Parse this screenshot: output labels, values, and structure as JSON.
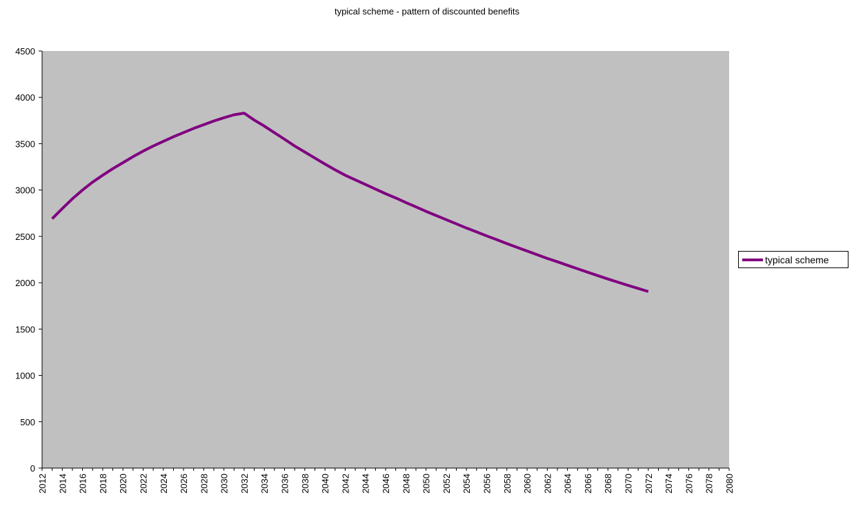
{
  "chart_data": {
    "type": "line",
    "title": "typical scheme - pattern of discounted benefits",
    "xlabel": "",
    "ylabel": "",
    "xlim": [
      2012,
      2080
    ],
    "ylim": [
      0,
      4500
    ],
    "y_ticks": [
      0,
      500,
      1000,
      1500,
      2000,
      2500,
      3000,
      3500,
      4000,
      4500
    ],
    "x_ticks": [
      2012,
      2014,
      2016,
      2018,
      2020,
      2022,
      2024,
      2026,
      2028,
      2030,
      2032,
      2034,
      2036,
      2038,
      2040,
      2042,
      2044,
      2046,
      2048,
      2050,
      2052,
      2054,
      2056,
      2058,
      2060,
      2062,
      2064,
      2066,
      2068,
      2070,
      2072,
      2074,
      2076,
      2078,
      2080
    ],
    "grid": false,
    "legend_position": "right",
    "background_color": "#c0c0c0",
    "series": [
      {
        "name": "typical scheme",
        "color": "#800080",
        "x": [
          2013,
          2014,
          2015,
          2016,
          2017,
          2018,
          2019,
          2020,
          2021,
          2022,
          2023,
          2024,
          2025,
          2026,
          2027,
          2028,
          2029,
          2030,
          2031,
          2032,
          2033,
          2034,
          2035,
          2036,
          2037,
          2038,
          2039,
          2040,
          2041,
          2042,
          2043,
          2044,
          2045,
          2046,
          2047,
          2048,
          2049,
          2050,
          2051,
          2052,
          2053,
          2054,
          2055,
          2056,
          2057,
          2058,
          2059,
          2060,
          2061,
          2062,
          2063,
          2064,
          2065,
          2066,
          2067,
          2068,
          2069,
          2070,
          2071,
          2072
        ],
        "values": [
          2690,
          2800,
          2905,
          3000,
          3085,
          3160,
          3230,
          3295,
          3360,
          3420,
          3475,
          3525,
          3575,
          3620,
          3665,
          3705,
          3745,
          3780,
          3812,
          3830,
          3755,
          3690,
          3618,
          3548,
          3475,
          3410,
          3345,
          3280,
          3218,
          3160,
          3110,
          3060,
          3010,
          2960,
          2915,
          2865,
          2818,
          2770,
          2725,
          2680,
          2635,
          2590,
          2548,
          2505,
          2465,
          2422,
          2382,
          2342,
          2302,
          2262,
          2226,
          2188,
          2150,
          2113,
          2077,
          2040,
          2005,
          1971,
          1938,
          1905
        ]
      }
    ]
  }
}
